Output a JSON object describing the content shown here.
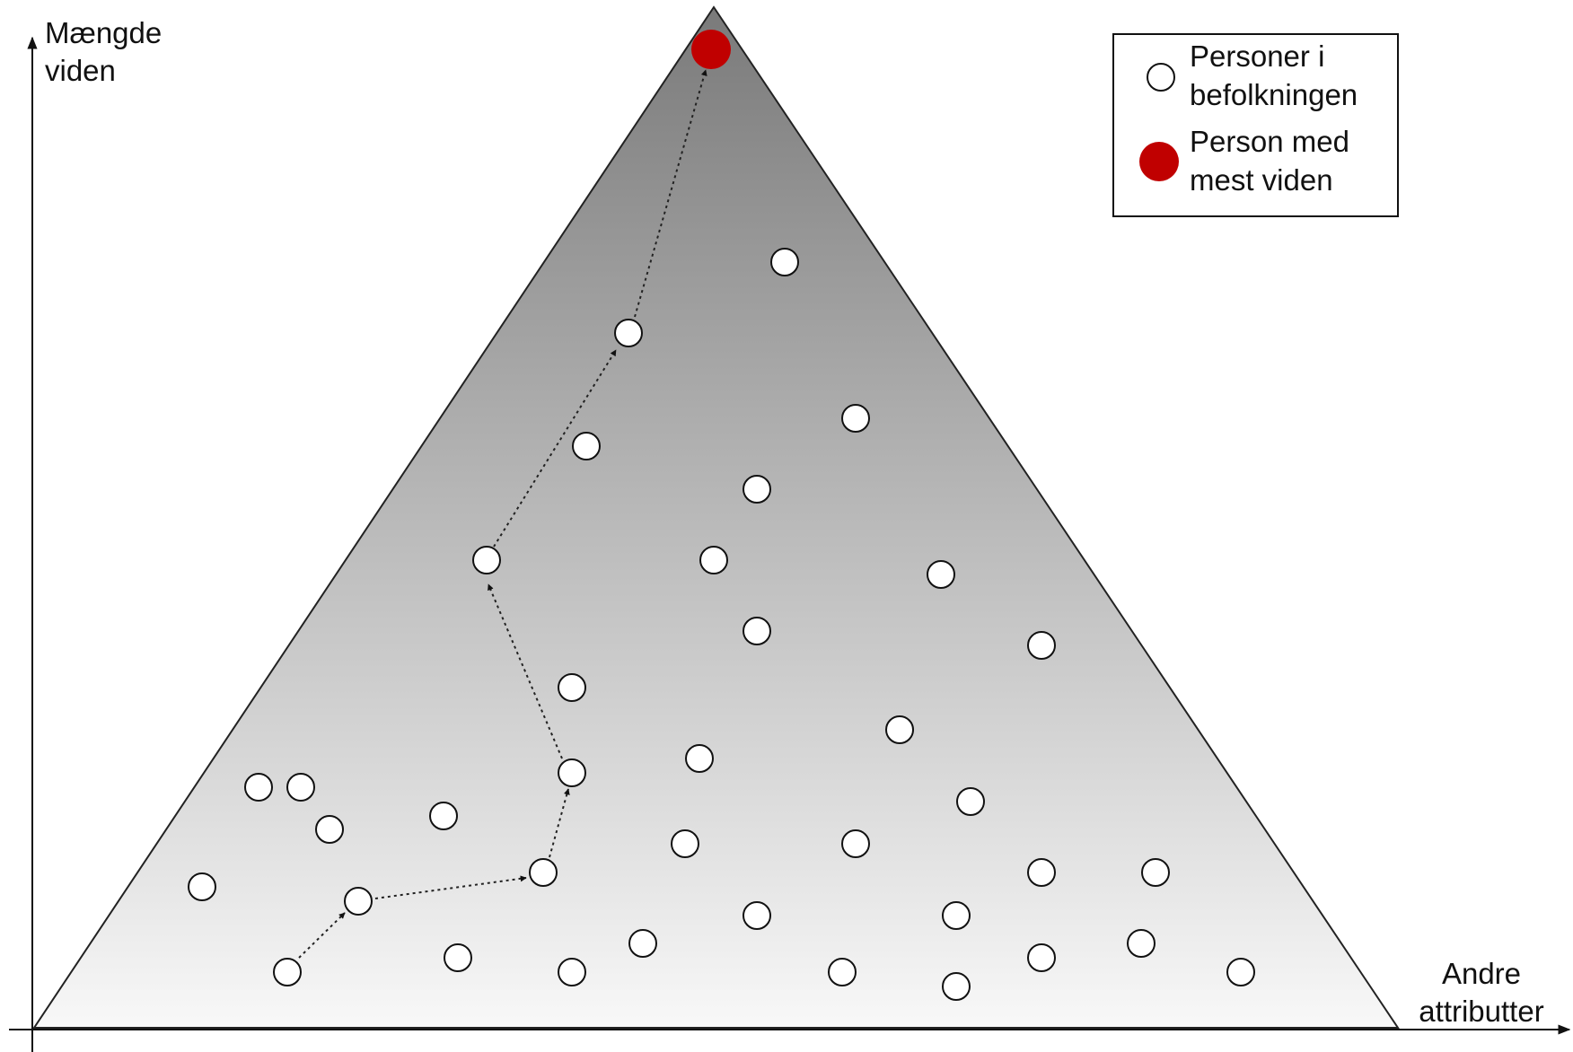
{
  "axes": {
    "y_label_line1": "Mængde",
    "y_label_line2": "viden",
    "x_label_line1": "Andre",
    "x_label_line2": "attributter"
  },
  "legend": {
    "population_line1": "Personer i",
    "population_line2": "befolkningen",
    "top_person_line1": "Person med",
    "top_person_line2": "mest viden"
  },
  "colors": {
    "highlight": "#c00000",
    "gradient_top": "#7a7a7a",
    "gradient_bottom": "#f8f8f8",
    "node_fill": "#ffffff",
    "stroke": "#111111"
  }
}
